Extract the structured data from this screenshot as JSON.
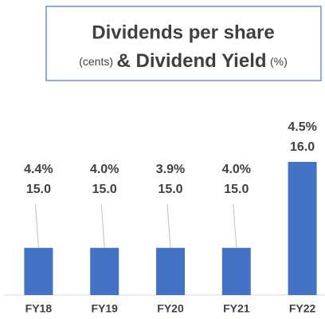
{
  "chart_data": {
    "type": "bar",
    "title": {
      "line1": "Dividends per share",
      "unit1": "(cents)",
      "line2": "& Dividend Yield",
      "unit2": "(%)"
    },
    "categories": [
      "FY18",
      "FY19",
      "FY20",
      "FY21",
      "FY22"
    ],
    "series": [
      {
        "color": "#4472c4",
        "values": [
          15,
          15,
          15,
          15,
          16
        ],
        "value_labels": [
          "15.0",
          "15.0",
          "15.0",
          "15.0",
          "16.0"
        ]
      }
    ],
    "yield": {
      "values": [
        4.4,
        4.0,
        3.9,
        4.0,
        4.5
      ],
      "value_labels": [
        "4.4%",
        "4.0%",
        "3.9%",
        "4.0%",
        "4.5%"
      ]
    },
    "ylim": [
      14.45,
      16
    ]
  }
}
